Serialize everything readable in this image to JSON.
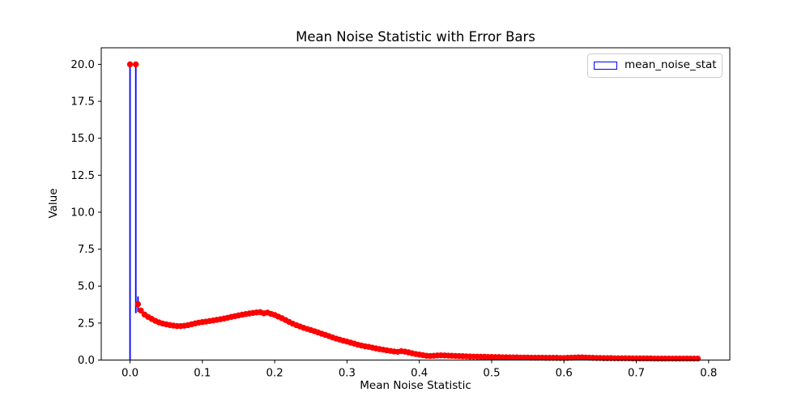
{
  "figure": {
    "title": "Mean Noise Statistic with Error Bars",
    "xlabel": "Mean Noise Statistic",
    "ylabel": "Value",
    "legend": {
      "label": "mean_noise_stat",
      "swatch_color": "#0000ff"
    }
  },
  "chart_data": {
    "type": "scatter",
    "title": "Mean Noise Statistic with Error Bars",
    "xlabel": "Mean Noise Statistic",
    "ylabel": "Value",
    "legend_entries": [
      "mean_noise_stat"
    ],
    "legend_position": "upper right",
    "grid": false,
    "xlim": [
      -0.0398,
      0.8293
    ],
    "ylim": [
      0,
      21.12
    ],
    "x_ticks": {
      "values": [
        0.0,
        0.1,
        0.2,
        0.3,
        0.4,
        0.5,
        0.6,
        0.7,
        0.8
      ],
      "labels": [
        "0.0",
        "0.1",
        "0.2",
        "0.3",
        "0.4",
        "0.5",
        "0.6",
        "0.7",
        "0.8"
      ]
    },
    "y_ticks": {
      "values": [
        0.0,
        2.5,
        5.0,
        7.5,
        10.0,
        12.5,
        15.0,
        17.5,
        20.0
      ],
      "labels": [
        "0.0",
        "2.5",
        "5.0",
        "7.5",
        "10.0",
        "12.5",
        "15.0",
        "17.5",
        "20.0"
      ]
    },
    "colors": {
      "marker": "#ff0000",
      "error_bar": "#0000ff",
      "axis": "#000000"
    },
    "marker_radius_px": 3.7,
    "error_bars": [
      {
        "x": 0.0,
        "low": 0.0,
        "high": 20.0
      },
      {
        "x": 0.008,
        "low": 3.17,
        "high": 20.0
      },
      {
        "x": 0.011,
        "low": 3.25,
        "high": 4.3
      }
    ],
    "series": [
      {
        "name": "mean_noise_stat",
        "marker": "circle",
        "points": [
          [
            0.0,
            20.0
          ],
          [
            0.008,
            20.0
          ],
          [
            0.011,
            3.78
          ],
          [
            0.015,
            3.35
          ],
          [
            0.02,
            3.08
          ],
          [
            0.025,
            2.92
          ],
          [
            0.03,
            2.78
          ],
          [
            0.035,
            2.65
          ],
          [
            0.04,
            2.55
          ],
          [
            0.045,
            2.47
          ],
          [
            0.05,
            2.42
          ],
          [
            0.055,
            2.37
          ],
          [
            0.06,
            2.33
          ],
          [
            0.065,
            2.3
          ],
          [
            0.07,
            2.3
          ],
          [
            0.075,
            2.32
          ],
          [
            0.08,
            2.36
          ],
          [
            0.085,
            2.42
          ],
          [
            0.09,
            2.48
          ],
          [
            0.095,
            2.53
          ],
          [
            0.1,
            2.57
          ],
          [
            0.105,
            2.6
          ],
          [
            0.11,
            2.64
          ],
          [
            0.115,
            2.68
          ],
          [
            0.12,
            2.72
          ],
          [
            0.125,
            2.76
          ],
          [
            0.13,
            2.81
          ],
          [
            0.135,
            2.86
          ],
          [
            0.14,
            2.92
          ],
          [
            0.145,
            2.97
          ],
          [
            0.15,
            3.02
          ],
          [
            0.155,
            3.07
          ],
          [
            0.16,
            3.11
          ],
          [
            0.165,
            3.15
          ],
          [
            0.17,
            3.19
          ],
          [
            0.175,
            3.22
          ],
          [
            0.18,
            3.24
          ],
          [
            0.185,
            3.16
          ],
          [
            0.19,
            3.21
          ],
          [
            0.195,
            3.12
          ],
          [
            0.2,
            3.05
          ],
          [
            0.205,
            2.94
          ],
          [
            0.21,
            2.83
          ],
          [
            0.215,
            2.71
          ],
          [
            0.22,
            2.58
          ],
          [
            0.225,
            2.46
          ],
          [
            0.23,
            2.36
          ],
          [
            0.235,
            2.27
          ],
          [
            0.24,
            2.18
          ],
          [
            0.245,
            2.1
          ],
          [
            0.25,
            2.03
          ],
          [
            0.255,
            1.95
          ],
          [
            0.26,
            1.87
          ],
          [
            0.265,
            1.78
          ],
          [
            0.27,
            1.7
          ],
          [
            0.275,
            1.62
          ],
          [
            0.28,
            1.53
          ],
          [
            0.285,
            1.45
          ],
          [
            0.29,
            1.38
          ],
          [
            0.295,
            1.31
          ],
          [
            0.3,
            1.25
          ],
          [
            0.305,
            1.18
          ],
          [
            0.31,
            1.11
          ],
          [
            0.315,
            1.04
          ],
          [
            0.32,
            0.98
          ],
          [
            0.325,
            0.93
          ],
          [
            0.33,
            0.89
          ],
          [
            0.335,
            0.84
          ],
          [
            0.34,
            0.79
          ],
          [
            0.345,
            0.74
          ],
          [
            0.35,
            0.7
          ],
          [
            0.355,
            0.66
          ],
          [
            0.36,
            0.62
          ],
          [
            0.365,
            0.58
          ],
          [
            0.37,
            0.56
          ],
          [
            0.375,
            0.6
          ],
          [
            0.38,
            0.57
          ],
          [
            0.385,
            0.52
          ],
          [
            0.39,
            0.46
          ],
          [
            0.395,
            0.41
          ],
          [
            0.4,
            0.37
          ],
          [
            0.405,
            0.33
          ],
          [
            0.41,
            0.29
          ],
          [
            0.415,
            0.28
          ],
          [
            0.42,
            0.29
          ],
          [
            0.425,
            0.31
          ],
          [
            0.43,
            0.32
          ],
          [
            0.435,
            0.31
          ],
          [
            0.44,
            0.3
          ],
          [
            0.445,
            0.29
          ],
          [
            0.45,
            0.28
          ],
          [
            0.455,
            0.27
          ],
          [
            0.46,
            0.26
          ],
          [
            0.465,
            0.25
          ],
          [
            0.47,
            0.24
          ],
          [
            0.475,
            0.23
          ],
          [
            0.48,
            0.23
          ],
          [
            0.485,
            0.22
          ],
          [
            0.49,
            0.22
          ],
          [
            0.495,
            0.21
          ],
          [
            0.5,
            0.21
          ],
          [
            0.505,
            0.2
          ],
          [
            0.51,
            0.2
          ],
          [
            0.515,
            0.19
          ],
          [
            0.52,
            0.19
          ],
          [
            0.525,
            0.18
          ],
          [
            0.53,
            0.18
          ],
          [
            0.535,
            0.18
          ],
          [
            0.54,
            0.17
          ],
          [
            0.545,
            0.17
          ],
          [
            0.55,
            0.17
          ],
          [
            0.555,
            0.16
          ],
          [
            0.56,
            0.16
          ],
          [
            0.565,
            0.16
          ],
          [
            0.57,
            0.16
          ],
          [
            0.575,
            0.15
          ],
          [
            0.58,
            0.15
          ],
          [
            0.585,
            0.15
          ],
          [
            0.59,
            0.15
          ],
          [
            0.595,
            0.14
          ],
          [
            0.6,
            0.14
          ],
          [
            0.605,
            0.15
          ],
          [
            0.61,
            0.16
          ],
          [
            0.615,
            0.17
          ],
          [
            0.62,
            0.18
          ],
          [
            0.625,
            0.18
          ],
          [
            0.63,
            0.17
          ],
          [
            0.635,
            0.16
          ],
          [
            0.64,
            0.15
          ],
          [
            0.645,
            0.14
          ],
          [
            0.65,
            0.14
          ],
          [
            0.655,
            0.13
          ],
          [
            0.66,
            0.13
          ],
          [
            0.665,
            0.13
          ],
          [
            0.67,
            0.12
          ],
          [
            0.675,
            0.12
          ],
          [
            0.68,
            0.12
          ],
          [
            0.685,
            0.12
          ],
          [
            0.69,
            0.12
          ],
          [
            0.695,
            0.11
          ],
          [
            0.7,
            0.11
          ],
          [
            0.705,
            0.11
          ],
          [
            0.71,
            0.11
          ],
          [
            0.715,
            0.11
          ],
          [
            0.72,
            0.11
          ],
          [
            0.725,
            0.1
          ],
          [
            0.73,
            0.1
          ],
          [
            0.735,
            0.1
          ],
          [
            0.74,
            0.1
          ],
          [
            0.745,
            0.1
          ],
          [
            0.75,
            0.1
          ],
          [
            0.755,
            0.1
          ],
          [
            0.76,
            0.1
          ],
          [
            0.765,
            0.1
          ],
          [
            0.77,
            0.1
          ],
          [
            0.775,
            0.1
          ],
          [
            0.78,
            0.1
          ],
          [
            0.785,
            0.1
          ]
        ]
      }
    ]
  }
}
